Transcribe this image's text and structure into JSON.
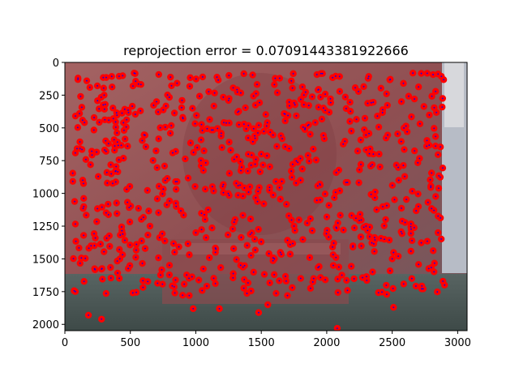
{
  "chart_data": {
    "type": "scatter",
    "title": "reprojection error = 0.07091443381922666",
    "xlabel": "",
    "ylabel": "",
    "xlim": [
      0,
      3072
    ],
    "ylim": [
      2048,
      0
    ],
    "y_inverted": true,
    "x_ticks": [
      0,
      500,
      1000,
      1500,
      2000,
      2500,
      3000
    ],
    "y_ticks": [
      0,
      250,
      500,
      750,
      1000,
      1250,
      1500,
      1750,
      2000
    ],
    "background": "photo of a sandstone fountain/wall relief (image underlay)",
    "grid": false,
    "legend": "none",
    "series": [
      {
        "marker": "circle",
        "color": "#ff0000"
      },
      {
        "marker": "dot",
        "color": "#0000ff"
      }
    ],
    "sample_points": [
      [
        120,
        260
      ],
      [
        300,
        250
      ],
      [
        520,
        180
      ],
      [
        700,
        300
      ],
      [
        900,
        420
      ],
      [
        1050,
        520
      ],
      [
        1200,
        650
      ],
      [
        1350,
        800
      ],
      [
        1500,
        700
      ],
      [
        1650,
        560
      ],
      [
        1800,
        900
      ],
      [
        1950,
        1050
      ],
      [
        2100,
        980
      ],
      [
        2250,
        820
      ],
      [
        2400,
        700
      ],
      [
        2550,
        900
      ],
      [
        2700,
        1100
      ],
      [
        2850,
        1300
      ],
      [
        200,
        1400
      ],
      [
        420,
        1500
      ],
      [
        650,
        1250
      ],
      [
        850,
        1100
      ],
      [
        1000,
        1300
      ],
      [
        1150,
        1450
      ],
      [
        1300,
        1200
      ],
      [
        1450,
        1350
      ],
      [
        1600,
        1500
      ],
      [
        1750,
        1250
      ],
      [
        1900,
        1650
      ],
      [
        2050,
        1550
      ],
      [
        2200,
        1400
      ],
      [
        2350,
        1600
      ],
      [
        2500,
        1500
      ],
      [
        2650,
        1650
      ],
      [
        2900,
        1700
      ],
      [
        80,
        1750
      ],
      [
        180,
        1930
      ],
      [
        280,
        1960
      ],
      [
        980,
        1880
      ],
      [
        1180,
        1880
      ],
      [
        1480,
        1910
      ],
      [
        2080,
        2030
      ],
      [
        2510,
        1870
      ],
      [
        1700,
        1780
      ],
      [
        1550,
        1850
      ],
      [
        2300,
        1250
      ],
      [
        2450,
        1200
      ],
      [
        950,
        1780
      ]
    ]
  }
}
